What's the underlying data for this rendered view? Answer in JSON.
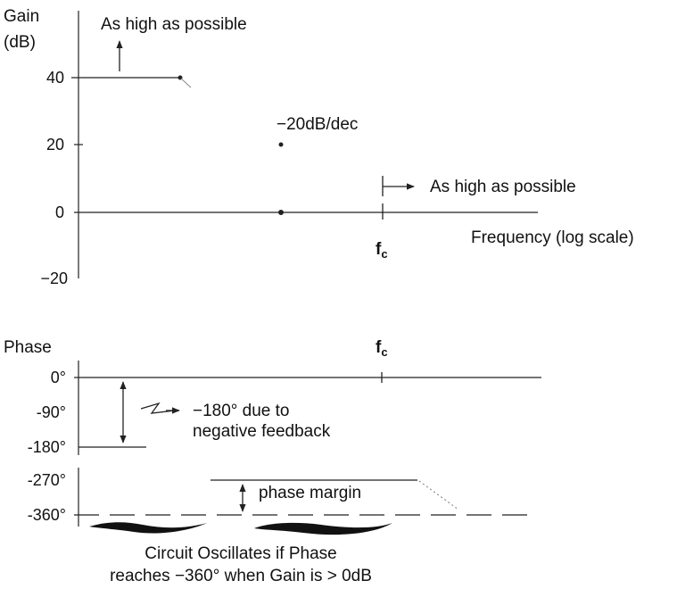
{
  "gain_plot": {
    "y_title_line1": "Gain",
    "y_title_line2": "(dB)",
    "ticks": [
      "40",
      "20",
      "0",
      "−20"
    ],
    "note_gain_high": "As high as possible",
    "note_slope": "−20dB/dec",
    "note_fc_high": "As high as possible",
    "x_title": "Frequency (log scale)",
    "fc_main": "f",
    "fc_sub": "c"
  },
  "phase_plot": {
    "y_title": "Phase",
    "ticks": [
      "0°",
      "-90°",
      "-180°",
      "-270°",
      "-360°"
    ],
    "fc_main": "f",
    "fc_sub": "c",
    "note_180_line1": "−180° due to",
    "note_180_line2": "negative feedback",
    "note_margin": "phase margin"
  },
  "caption": {
    "line1": "Circuit Oscillates if Phase",
    "line2": "reaches −360° when Gain is > 0dB"
  }
}
